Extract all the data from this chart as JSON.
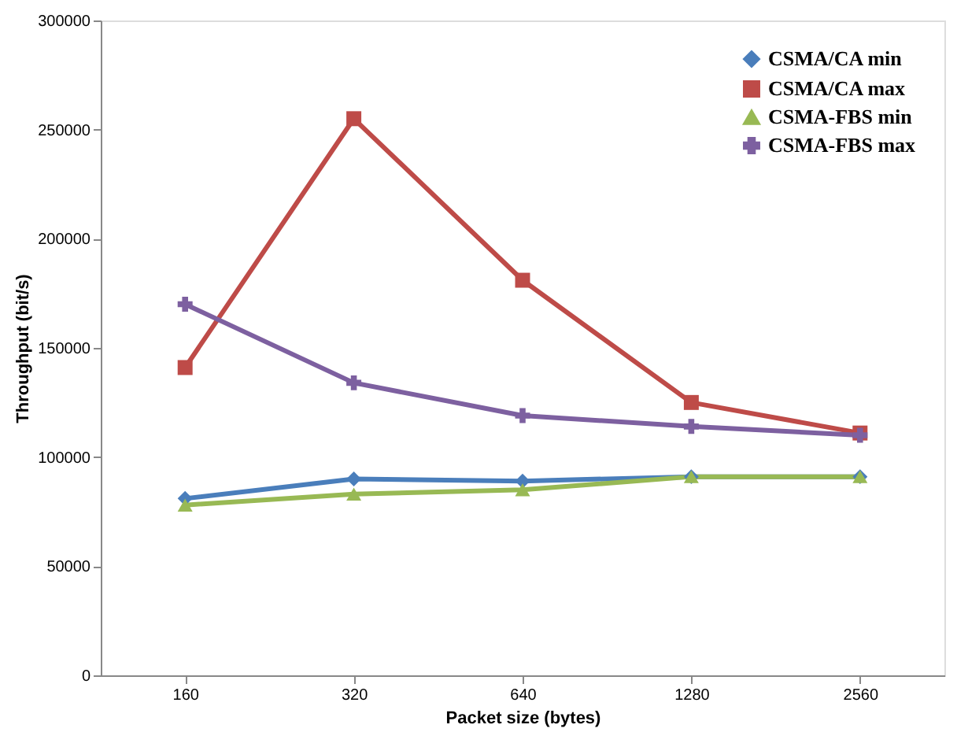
{
  "chart_data": {
    "type": "line",
    "xlabel": "Packet size (bytes)",
    "ylabel": "Throughput (bit/s)",
    "categories": [
      "160",
      "320",
      "640",
      "1280",
      "2560"
    ],
    "series": [
      {
        "name": "CSMA/CA min",
        "color": "#4a7ebb",
        "marker": "diamond",
        "values": [
          81000,
          90000,
          89000,
          91000,
          91000
        ]
      },
      {
        "name": "CSMA/CA max",
        "color": "#be4b48",
        "marker": "square",
        "values": [
          141000,
          255000,
          181000,
          125000,
          111000
        ]
      },
      {
        "name": "CSMA-FBS min",
        "color": "#98b954",
        "marker": "triangle",
        "values": [
          78000,
          83000,
          85000,
          91000,
          91000
        ]
      },
      {
        "name": "CSMA-FBS max",
        "color": "#7d60a0",
        "marker": "cross",
        "values": [
          170000,
          134000,
          119000,
          114000,
          110000
        ]
      }
    ],
    "ylim": [
      0,
      300000
    ],
    "yticks": [
      0,
      50000,
      100000,
      150000,
      200000,
      250000,
      300000
    ],
    "grid": false,
    "legend": "top right",
    "line_style": "solid"
  }
}
